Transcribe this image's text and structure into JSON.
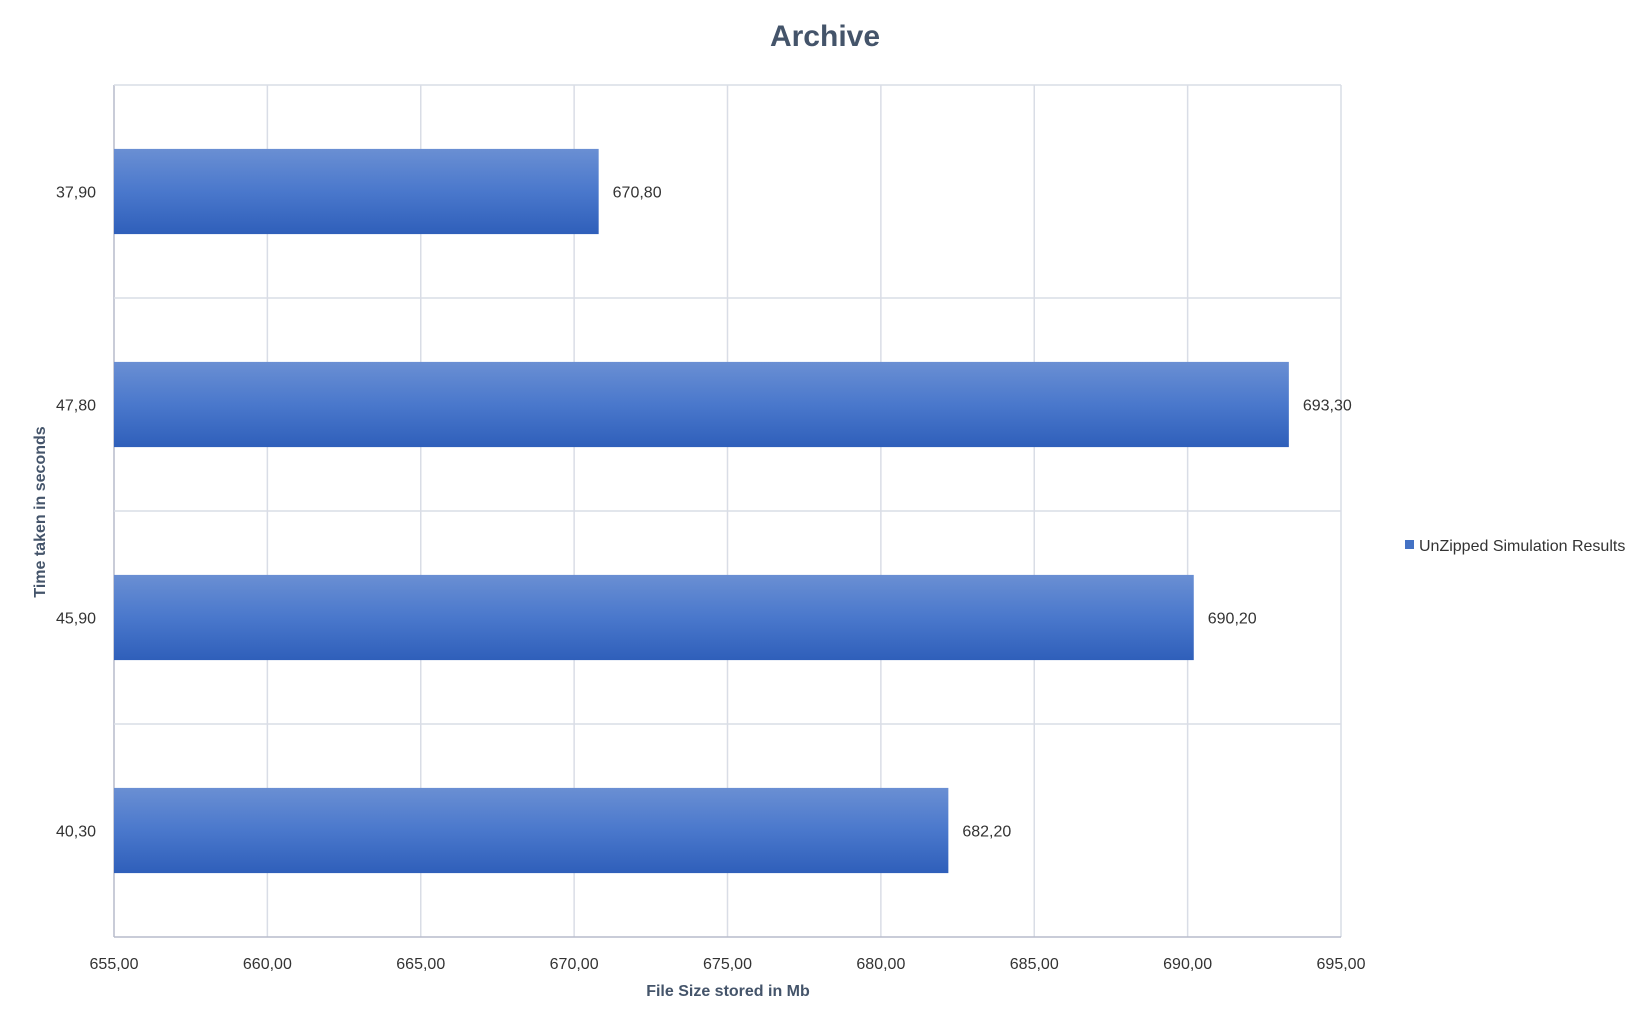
{
  "chart_data": {
    "type": "bar",
    "orientation": "horizontal",
    "title": "Archive",
    "xlabel": "File Size stored in Mb",
    "ylabel": "Time taken in seconds",
    "categories": [
      "37,90",
      "47,80",
      "45,90",
      "40,30"
    ],
    "series": [
      {
        "name": "UnZipped Simulation Results",
        "values": [
          670.8,
          693.3,
          690.2,
          682.2
        ],
        "labels": [
          "670,80",
          "693,30",
          "690,20",
          "682,20"
        ],
        "color": "#4472c4"
      }
    ],
    "xlim": [
      655,
      695
    ],
    "x_ticks": [
      "655,00",
      "660,00",
      "665,00",
      "670,00",
      "675,00",
      "680,00",
      "685,00",
      "690,00",
      "695,00"
    ],
    "grid": true,
    "legend_position": "right"
  }
}
